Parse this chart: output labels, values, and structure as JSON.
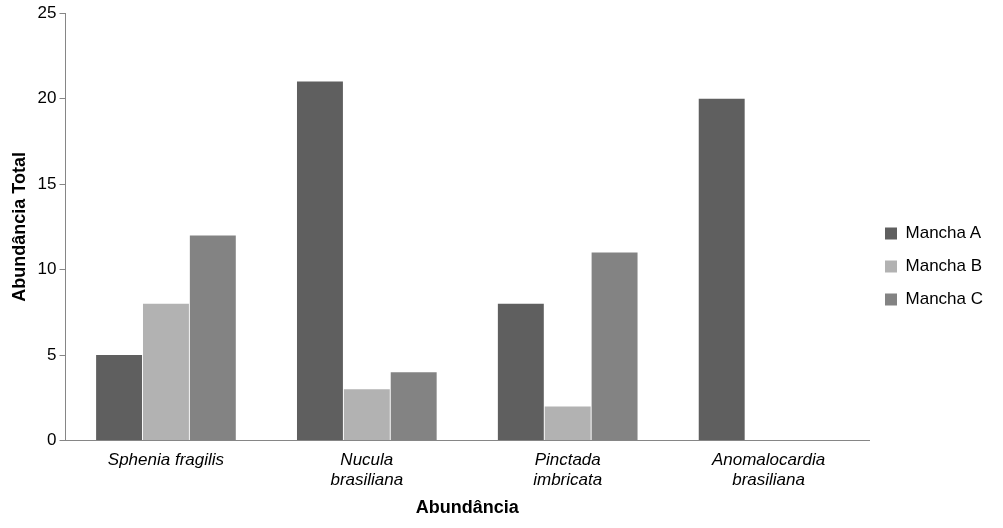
{
  "chart_data": {
    "type": "bar",
    "xlabel": "Abundância",
    "ylabel": "Abundância Total",
    "categories": [
      "Sphenia fragilis",
      "Nucula brasiliana",
      "Pinctada imbricata",
      "Anomalocardia brasiliana"
    ],
    "series": [
      {
        "name": "Mancha A",
        "color": "#5f5f5f",
        "values": [
          5,
          21,
          8,
          20
        ]
      },
      {
        "name": "Mancha B",
        "color": "#b2b2b2",
        "values": [
          8,
          3,
          2,
          0
        ]
      },
      {
        "name": "Mancha C",
        "color": "#838383",
        "values": [
          12,
          4,
          11,
          0
        ]
      }
    ],
    "ylim": [
      0,
      25
    ],
    "yticks": [
      0,
      5,
      10,
      15,
      20,
      25
    ],
    "grid": false,
    "legend": "right"
  }
}
